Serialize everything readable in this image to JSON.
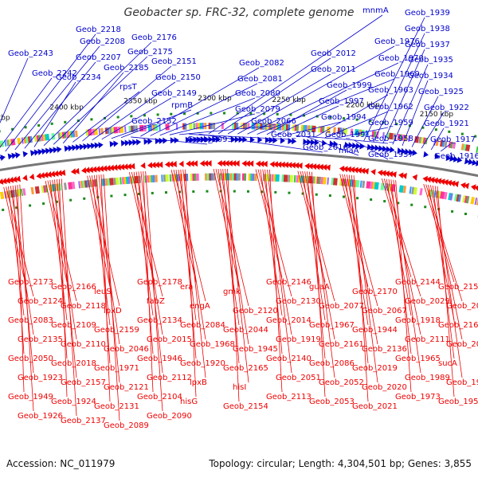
{
  "title": "Geobacter sp. FRC-32, complete genome",
  "footer": {
    "accession": "Accession: NC_011979",
    "stats": "Topology: circular; Length: 4,304,501 bp; Genes: 3,855"
  },
  "colors": {
    "forward": "#0000cc",
    "reverse": "#ee0000",
    "backbone": "#777777",
    "ticks": "#1a8a1a"
  },
  "ticks": [
    "2450 kbp",
    "2400 kbp",
    "2350 kbp",
    "2300 kbp",
    "2250 kbp",
    "2200 kbp",
    "2150 kbp"
  ],
  "upper_labels": [
    "Geob_2243",
    "Geob_2242",
    "Geob_2218",
    "Geob_2208",
    "Geob_2207",
    "Geob_2234",
    "Geob_2176",
    "Geob_2175",
    "Geob_2185",
    "rpsT",
    "Geob_2151",
    "Geob_2150",
    "Geob_2149",
    "rpmB",
    "Geob_2152",
    "Geob_2093",
    "Geob_2082",
    "Geob_2081",
    "Geob_2080",
    "Geob_2079",
    "Geob_2066",
    "Geob_2031",
    "Geob_2016",
    "mnmA",
    "Geob_2012",
    "Geob_2011",
    "Geob_1976",
    "Geob_1970",
    "Geob_1969",
    "Geob_1999",
    "Geob_1997",
    "Geob_1994",
    "Geob_1991",
    "miaA",
    "Geob_1963",
    "Geob_1962",
    "Geob_1959",
    "Geob_1958",
    "Geob_1957",
    "Geob_1939",
    "Geob_1938",
    "Geob_1937",
    "Geob_1935",
    "Geob_1934",
    "Geob_1925",
    "Geob_1922",
    "Geob_1921",
    "Geob_1917",
    "Geob_1916"
  ],
  "lower_labels": [
    "Geob_2173",
    "Geob_2166",
    "leuS",
    "Geob_2178",
    "era",
    "gmk",
    "Geob_2146",
    "guaA",
    "Geob_2170",
    "Geob_2144",
    "Geob_2153",
    "Geob_2124",
    "Geob_2118",
    "lpxD",
    "fabZ",
    "engA",
    "Geob_2120",
    "Geob_2130",
    "Geob_2077",
    "Geob_2067",
    "Geob_2029",
    "Geob_2000",
    "Geob_2083",
    "Geob_2109",
    "Geob_2159",
    "Geob_2134",
    "Geob_2084",
    "Geob_2044",
    "Geob_2014",
    "Geob_1967",
    "Geob_1944",
    "Geob_1918",
    "Geob_2160",
    "Geob_2135",
    "Geob_2110",
    "Geob_2046",
    "Geob_2015",
    "Geob_1968",
    "Geob_1945",
    "Geob_1919",
    "Geob_2161",
    "Geob_2136",
    "Geob_2111",
    "Geob_2085",
    "Geob_2050",
    "Geob_2018",
    "Geob_1971",
    "Geob_1946",
    "Geob_1920",
    "Geob_2165",
    "Geob_2140",
    "Geob_2086",
    "Geob_2019",
    "Geob_1965",
    "sucA",
    "Geob_1923",
    "Geob_2157",
    "Geob_2121",
    "Geob_2112",
    "lpxB",
    "hisI",
    "Geob_2051",
    "Geob_2052",
    "Geob_2020",
    "Geob_1989",
    "Geob_1972",
    "Geob_1949",
    "Geob_1924",
    "Geob_2131",
    "Geob_2104",
    "hisG",
    "Geob_2154",
    "Geob_2113",
    "Geob_2053",
    "Geob_2021",
    "Geob_1973",
    "Geob_1950",
    "Geob_1926",
    "Geob_2137",
    "Geob_2089",
    "Geob_2090"
  ]
}
